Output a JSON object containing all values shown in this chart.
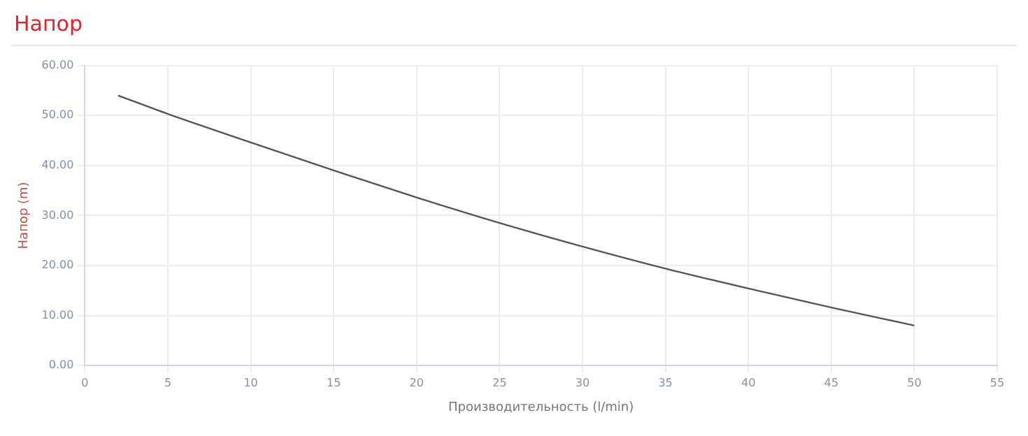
{
  "chart_data": {
    "type": "line",
    "title": "Напор",
    "xlabel": "Производительность (l/min)",
    "ylabel": "Напор (m)",
    "x": [
      2,
      5,
      10,
      15,
      20,
      25,
      30,
      35,
      40,
      45,
      50
    ],
    "series": [
      {
        "color": "#555555",
        "values": [
          54,
          50.3,
          44.6,
          39,
          33.6,
          28.5,
          23.8,
          19.4,
          15.4,
          11.6,
          8
        ]
      }
    ],
    "xlim": [
      0,
      55
    ],
    "xticks": [
      0,
      5,
      10,
      15,
      20,
      25,
      30,
      35,
      40,
      45,
      50,
      55
    ],
    "ylim": [
      0,
      60
    ],
    "yticks": [
      {
        "value": 0,
        "label": "0.00"
      },
      {
        "value": 10,
        "label": "10.00"
      },
      {
        "value": 20,
        "label": "20.00"
      },
      {
        "value": 30,
        "label": "30.00"
      },
      {
        "value": 40,
        "label": "40.00"
      },
      {
        "value": 50,
        "label": "50.00"
      },
      {
        "value": 60,
        "label": "60.00"
      }
    ],
    "grid": true,
    "marker": "none"
  }
}
